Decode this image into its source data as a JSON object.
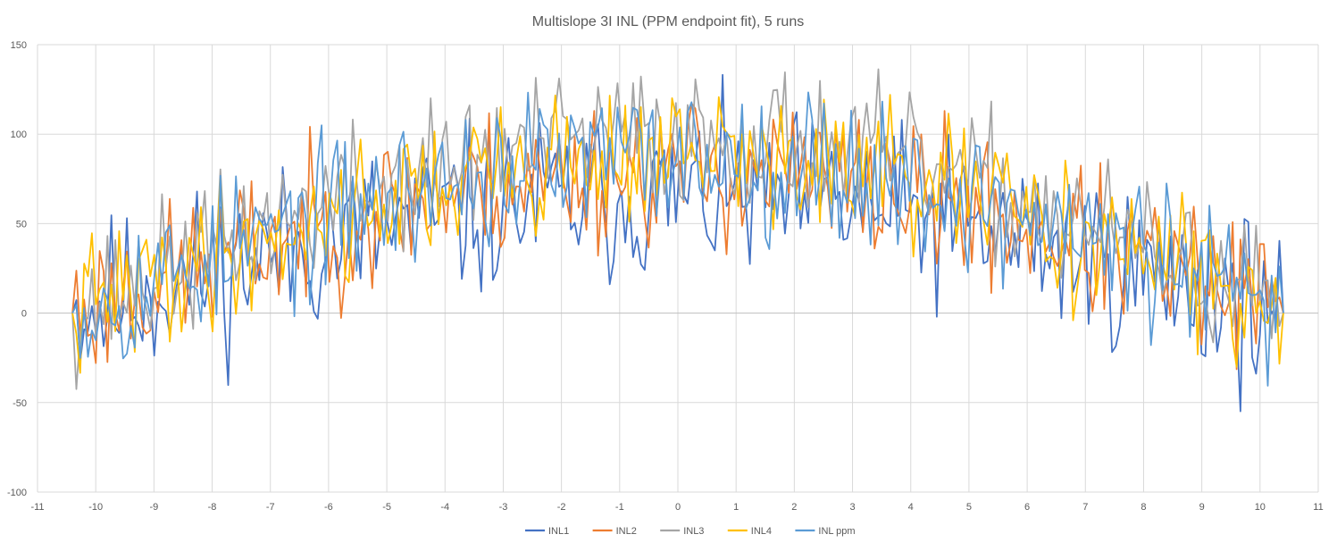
{
  "chart_data": {
    "type": "line",
    "title": "Multislope 3I INL (PPM endpoint fit), 5 runs",
    "xlabel": "",
    "ylabel": "",
    "xlim": [
      -11,
      11
    ],
    "ylim": [
      -100,
      150
    ],
    "x_ticks": [
      -11,
      -10,
      -9,
      -8,
      -7,
      -6,
      -5,
      -4,
      -3,
      -2,
      -1,
      0,
      1,
      2,
      3,
      4,
      5,
      6,
      7,
      8,
      9,
      10,
      11
    ],
    "y_ticks": [
      -100,
      -50,
      0,
      50,
      100,
      150
    ],
    "grid": "on",
    "legend_position": "bottom",
    "x_start": -10.4,
    "x_end": 10.4,
    "points_per_series": 312,
    "series": [
      {
        "name": "INL1",
        "color": "#4472C4",
        "amp": 80,
        "seed": 11,
        "offset": -15,
        "noise": 30,
        "end_drop": -20
      },
      {
        "name": "INL2",
        "color": "#ED7D31",
        "amp": 85,
        "seed": 23,
        "offset": -5,
        "noise": 26,
        "end_drop": 10
      },
      {
        "name": "INL3",
        "color": "#A5A5A5",
        "amp": 95,
        "seed": 37,
        "offset": 5,
        "noise": 24,
        "end_drop": 25
      },
      {
        "name": "INL4",
        "color": "#FFC000",
        "amp": 88,
        "seed": 41,
        "offset": 0,
        "noise": 24,
        "end_drop": 35
      },
      {
        "name": "INL ppm",
        "color": "#5B9BD5",
        "amp": 90,
        "seed": 53,
        "offset": -2,
        "noise": 26,
        "end_drop": 15
      }
    ]
  }
}
